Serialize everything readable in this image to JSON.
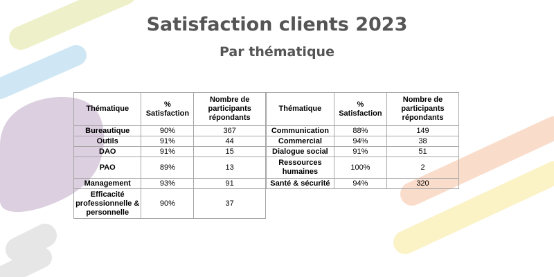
{
  "title": "Satisfaction clients 2023",
  "subtitle": "Par thématique",
  "table": {
    "headers": [
      "Thématique",
      "% Satisfaction",
      "Nombre de participants répondants"
    ],
    "left_rows": [
      {
        "theme": "Bureautique",
        "satisfaction": "90%",
        "participants": "367"
      },
      {
        "theme": "Outils",
        "satisfaction": "91%",
        "participants": "44"
      },
      {
        "theme": "DAO",
        "satisfaction": "91%",
        "participants": "15"
      },
      {
        "theme": "PAO",
        "satisfaction": "89%",
        "participants": "13"
      },
      {
        "theme": "Management",
        "satisfaction": "93%",
        "participants": "91"
      },
      {
        "theme": "Efficacité professionnelle & personnelle",
        "satisfaction": "90%",
        "participants": "37"
      }
    ],
    "right_rows": [
      {
        "theme": "Communication",
        "satisfaction": "88%",
        "participants": "149"
      },
      {
        "theme": "Commercial",
        "satisfaction": "94%",
        "participants": "38"
      },
      {
        "theme": "Dialogue social",
        "satisfaction": "91%",
        "participants": "51"
      },
      {
        "theme": "Ressources humaines",
        "satisfaction": "100%",
        "participants": "2"
      },
      {
        "theme": "Santé & sécurité",
        "satisfaction": "94%",
        "participants": "320"
      }
    ]
  },
  "colors": {
    "title": "#555555",
    "deco_yellow_green": "#eef0c9",
    "deco_blue": "#cfe7f4",
    "deco_purple": "#dccfe0",
    "deco_peach": "#fadccb",
    "deco_yellow": "#fbf2c6",
    "deco_gray": "#e6e6e6"
  }
}
